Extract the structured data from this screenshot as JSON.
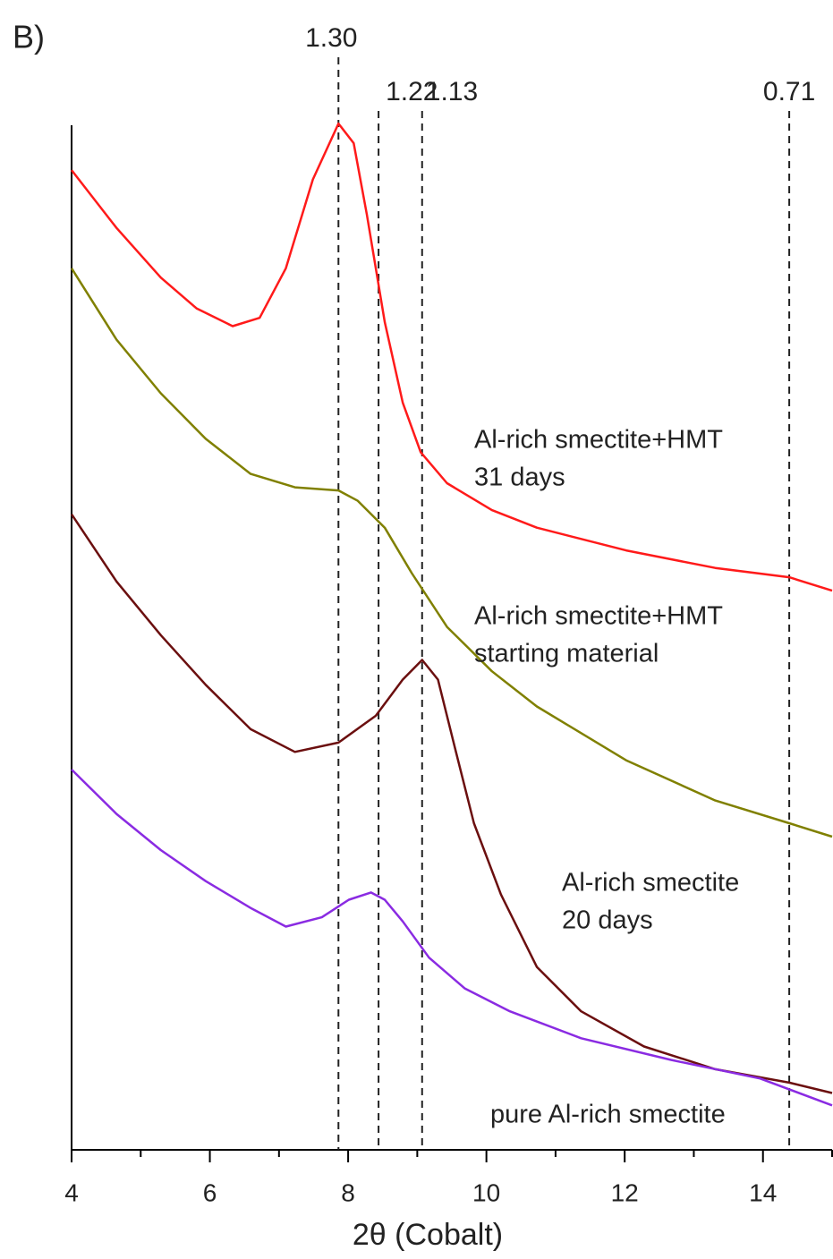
{
  "chart_data": {
    "type": "line",
    "panel_label": "B)",
    "xlabel": "2θ (Cobalt)",
    "xlim": [
      4,
      15
    ],
    "xticks": [
      4,
      6,
      8,
      10,
      12,
      14
    ],
    "xminor_ticks": [
      5,
      7,
      9,
      11,
      13,
      15
    ],
    "ylim": [
      0,
      100
    ],
    "reference_lines": [
      {
        "x": 7.86,
        "label": "1.30"
      },
      {
        "x": 8.44,
        "label": "1.22"
      },
      {
        "x": 9.07,
        "label": "1.13"
      },
      {
        "x": 14.38,
        "label": "0.71"
      }
    ],
    "series": [
      {
        "label": [
          "Al-rich smectite+HMT",
          "31 days"
        ],
        "color": "#ff1a1a",
        "x": [
          4,
          4.65,
          5.29,
          5.81,
          6.33,
          6.72,
          7.1,
          7.49,
          7.86,
          8.08,
          8.27,
          8.53,
          8.79,
          9.05,
          9.43,
          10.08,
          10.73,
          12.02,
          13.31,
          14.38,
          15
        ],
        "values": [
          94.8,
          89.2,
          84.4,
          81.4,
          79.7,
          80.5,
          85.3,
          93.9,
          99.3,
          97.4,
          90.5,
          80.1,
          72.3,
          67.5,
          64.5,
          61.9,
          60.2,
          58.0,
          56.3,
          55.4,
          54.1
        ]
      },
      {
        "label": [
          "Al-rich smectite+HMT",
          "starting material"
        ],
        "color": "#808000",
        "x": [
          4,
          4.65,
          5.29,
          5.94,
          6.59,
          7.23,
          7.86,
          8.14,
          8.53,
          8.92,
          9.43,
          10.08,
          10.73,
          12.02,
          13.31,
          14.38,
          15
        ],
        "values": [
          85.3,
          78.4,
          73.2,
          68.8,
          65.4,
          64.1,
          63.8,
          62.8,
          60.2,
          55.8,
          50.6,
          46.3,
          42.9,
          37.7,
          33.8,
          31.6,
          30.3
        ]
      },
      {
        "label": [
          "Al-rich smectite",
          "20 days"
        ],
        "color": "#6b0f0f",
        "x": [
          4,
          4.65,
          5.29,
          5.94,
          6.59,
          7.23,
          7.86,
          8.4,
          8.79,
          9.07,
          9.3,
          9.56,
          9.82,
          10.21,
          10.73,
          11.37,
          12.28,
          13.31,
          14.38,
          15
        ],
        "values": [
          61.5,
          55.0,
          49.8,
          45.0,
          40.7,
          38.5,
          39.4,
          42.0,
          45.5,
          47.4,
          45.5,
          38.5,
          31.6,
          24.7,
          17.7,
          13.4,
          10.0,
          7.8,
          6.5,
          5.5
        ]
      },
      {
        "label": [
          "pure Al-rich smectite"
        ],
        "color": "#8a2be2",
        "x": [
          4,
          4.65,
          5.29,
          5.94,
          6.59,
          7.1,
          7.62,
          8.01,
          8.33,
          8.53,
          8.79,
          9.17,
          9.69,
          10.34,
          11.37,
          12.67,
          13.96,
          15
        ],
        "values": [
          36.8,
          32.5,
          29.0,
          26.0,
          23.4,
          21.6,
          22.5,
          24.2,
          24.9,
          24.2,
          22.1,
          18.6,
          15.6,
          13.4,
          10.8,
          8.7,
          6.9,
          4.3
        ]
      }
    ]
  }
}
